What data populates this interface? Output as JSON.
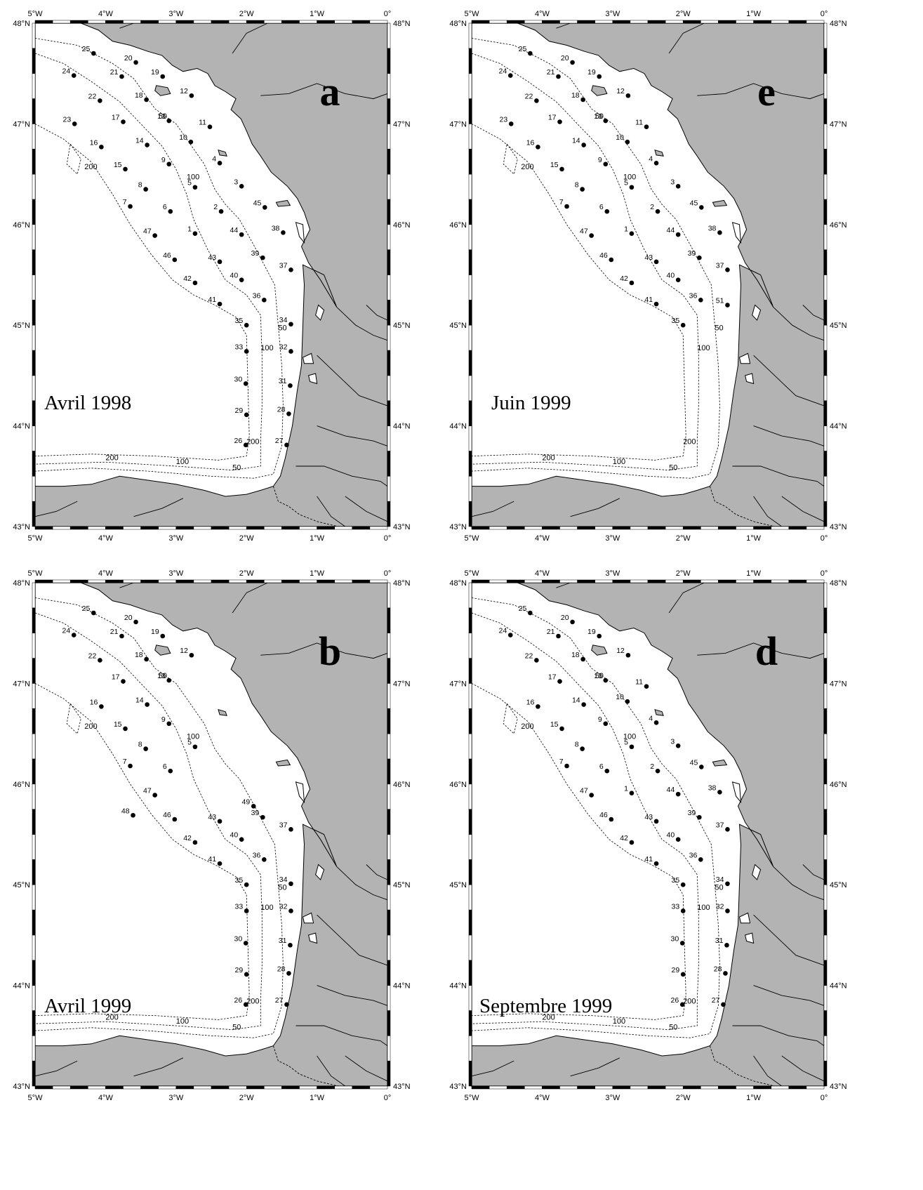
{
  "axes": {
    "lon_labels": [
      "5°W",
      "4°W",
      "3°W",
      "2°W",
      "1°W",
      "0°"
    ],
    "lat_labels": [
      "48°N",
      "47°N",
      "46°N",
      "45°N",
      "44°N",
      "43°N"
    ],
    "lon_values": [
      -5,
      -4,
      -3,
      -2,
      -1,
      0
    ],
    "lat_values": [
      48,
      47,
      46,
      45,
      44,
      43
    ]
  },
  "isobath_labels": [
    "50",
    "100",
    "200"
  ],
  "colors": {
    "land": "#b3b3b3",
    "sea": "#ffffff",
    "stations": "#000000",
    "frame": "#000000"
  },
  "stations": {
    "1": [
      -2.73,
      45.91
    ],
    "2": [
      -2.36,
      46.13
    ],
    "3": [
      -2.07,
      46.38
    ],
    "4": [
      -2.38,
      46.61
    ],
    "5": [
      -2.73,
      46.37
    ],
    "6": [
      -3.08,
      46.13
    ],
    "7": [
      -3.65,
      46.18
    ],
    "8": [
      -3.43,
      46.35
    ],
    "9": [
      -3.1,
      46.6
    ],
    "10": [
      -2.79,
      46.82
    ],
    "11": [
      -2.52,
      46.97
    ],
    "12": [
      -2.78,
      47.28
    ],
    "13": [
      -3.1,
      47.03
    ],
    "14": [
      -3.41,
      46.79
    ],
    "15": [
      -3.72,
      46.55
    ],
    "16": [
      -4.06,
      46.77
    ],
    "17": [
      -3.75,
      47.02
    ],
    "18": [
      -3.42,
      47.24
    ],
    "19": [
      -3.19,
      47.47
    ],
    "20": [
      -3.57,
      47.61
    ],
    "21": [
      -3.77,
      47.47
    ],
    "22": [
      -4.08,
      47.23
    ],
    "23": [
      -4.44,
      47.0
    ],
    "24": [
      -4.45,
      47.48
    ],
    "25": [
      -4.17,
      47.7
    ],
    "26": [
      -2.01,
      43.81
    ],
    "27": [
      -1.43,
      43.81
    ],
    "28": [
      -1.4,
      44.12
    ],
    "29": [
      -2.0,
      44.11
    ],
    "30": [
      -2.01,
      44.42
    ],
    "31": [
      -1.38,
      44.4
    ],
    "32": [
      -1.37,
      44.74
    ],
    "33": [
      -2.0,
      44.74
    ],
    "34": [
      -1.37,
      45.01
    ],
    "35": [
      -2.0,
      45.0
    ],
    "36": [
      -1.75,
      45.25
    ],
    "37": [
      -1.37,
      45.55
    ],
    "38": [
      -1.48,
      45.92
    ],
    "39": [
      -1.77,
      45.67
    ],
    "40": [
      -2.07,
      45.45
    ],
    "41": [
      -2.38,
      45.21
    ],
    "42": [
      -2.73,
      45.42
    ],
    "43": [
      -2.38,
      45.63
    ],
    "44": [
      -2.07,
      45.9
    ],
    "45": [
      -1.74,
      46.17
    ],
    "46": [
      -3.02,
      45.65
    ],
    "47": [
      -3.3,
      45.89
    ],
    "48": [
      -3.61,
      45.69
    ],
    "49": [
      -1.9,
      45.78
    ],
    "51": [
      -1.37,
      45.2
    ]
  },
  "panels": [
    {
      "id": "a",
      "letter": "a",
      "caption": "Avril 1998",
      "stations": [
        "1",
        "2",
        "3",
        "4",
        "5",
        "6",
        "7",
        "8",
        "9",
        "10",
        "11",
        "12",
        "13",
        "14",
        "15",
        "16",
        "17",
        "18",
        "19",
        "20",
        "21",
        "22",
        "23",
        "24",
        "25",
        "26",
        "27",
        "28",
        "29",
        "30",
        "31",
        "32",
        "33",
        "34",
        "35",
        "36",
        "37",
        "38",
        "39",
        "40",
        "41",
        "42",
        "43",
        "44",
        "45",
        "46",
        "47"
      ]
    },
    {
      "id": "e",
      "letter": "e",
      "caption": "Juin 1999",
      "stations": [
        "1",
        "2",
        "3",
        "4",
        "5",
        "6",
        "7",
        "8",
        "9",
        "10",
        "11",
        "12",
        "13",
        "14",
        "15",
        "16",
        "17",
        "18",
        "19",
        "20",
        "21",
        "22",
        "23",
        "24",
        "25",
        "35",
        "36",
        "37",
        "38",
        "39",
        "40",
        "41",
        "42",
        "43",
        "44",
        "45",
        "46",
        "47",
        "51"
      ]
    },
    {
      "id": "b",
      "letter": "b",
      "caption": "Avril 1999",
      "stations": [
        "5",
        "6",
        "7",
        "8",
        "9",
        "12",
        "13",
        "14",
        "15",
        "16",
        "17",
        "18",
        "19",
        "20",
        "21",
        "22",
        "24",
        "25",
        "26",
        "27",
        "28",
        "29",
        "30",
        "31",
        "32",
        "33",
        "34",
        "35",
        "36",
        "37",
        "39",
        "40",
        "41",
        "42",
        "43",
        "46",
        "47",
        "48",
        "49"
      ]
    },
    {
      "id": "d",
      "letter": "d",
      "caption": "Septembre 1999",
      "stations": [
        "1",
        "2",
        "3",
        "4",
        "5",
        "6",
        "7",
        "8",
        "9",
        "10",
        "11",
        "12",
        "13",
        "14",
        "15",
        "16",
        "17",
        "18",
        "19",
        "20",
        "21",
        "22",
        "24",
        "25",
        "26",
        "27",
        "28",
        "29",
        "30",
        "31",
        "32",
        "33",
        "34",
        "35",
        "36",
        "37",
        "38",
        "39",
        "40",
        "41",
        "42",
        "43",
        "44",
        "45",
        "46",
        "47"
      ]
    }
  ]
}
